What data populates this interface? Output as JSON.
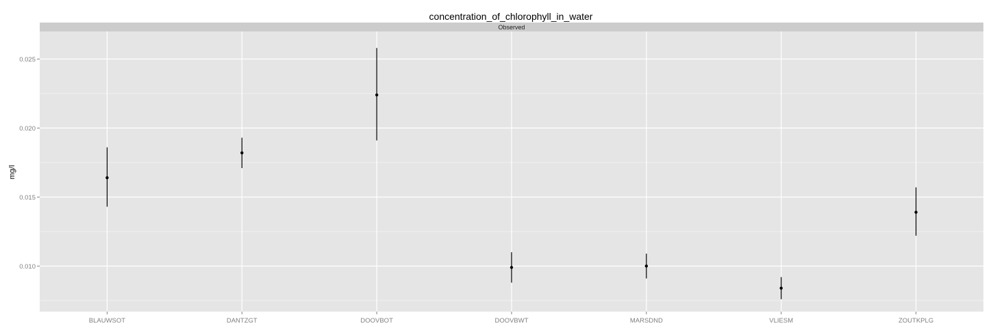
{
  "chart_data": {
    "type": "scatter",
    "title": "concentration_of_chlorophyll_in_water",
    "facet_label": "Observed",
    "xlabel": "",
    "ylabel": "mg/l",
    "categories": [
      "BLAUWSOT",
      "DANTZGT",
      "DOOVBOT",
      "DOOVBWT",
      "MARSDND",
      "VLIESM",
      "ZOUTKPLG"
    ],
    "ylim": [
      0.0067,
      0.027
    ],
    "yticks": [
      0.01,
      0.015,
      0.02,
      0.025
    ],
    "ytick_labels": [
      "0.010",
      "0.015",
      "0.020",
      "0.025"
    ],
    "grid": true,
    "series": [
      {
        "values": [
          0.0164,
          0.0182,
          0.0224,
          0.0099,
          0.01,
          0.0084,
          0.0139
        ],
        "lower": [
          0.0143,
          0.0171,
          0.0191,
          0.0088,
          0.0091,
          0.0076,
          0.0122
        ],
        "upper": [
          0.0186,
          0.0193,
          0.0258,
          0.011,
          0.0109,
          0.0092,
          0.0157
        ]
      }
    ],
    "colors": {
      "panel": "#e5e5e5",
      "grid_major": "#ffffff",
      "grid_minor": "#f2f2f2",
      "strip": "#cccccc",
      "points": "#000000",
      "tick_text": "#7f7f7f"
    }
  }
}
